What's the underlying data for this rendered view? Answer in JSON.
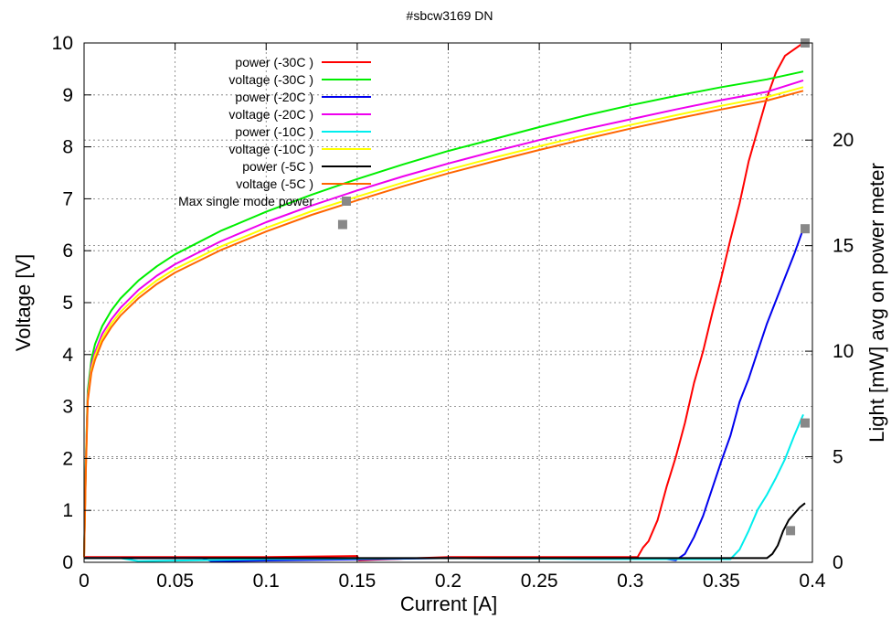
{
  "chart_data": {
    "type": "line",
    "title": "#sbcw3169 DN",
    "xlabel": "Current [A]",
    "ylabel": "Voltage [V]",
    "y2label": "Light [mW] avg on power meter",
    "xlim": [
      0,
      0.4
    ],
    "ylim": [
      0,
      10
    ],
    "y2lim": [
      0,
      24.6
    ],
    "x_ticks": [
      "0",
      "0.05",
      "0.1",
      "0.15",
      "0.2",
      "0.25",
      "0.3",
      "0.35",
      "0.4"
    ],
    "y_ticks": [
      "0",
      "1",
      "2",
      "3",
      "4",
      "5",
      "6",
      "7",
      "8",
      "9",
      "10"
    ],
    "y2_ticks": [
      "0",
      "5",
      "10",
      "15",
      "20"
    ],
    "grid": true,
    "legend_position": "top-left",
    "series": [
      {
        "name": "power (-30C )",
        "axis": "y2",
        "color": "#ff0000",
        "x": [
          0,
          0.1,
          0.15,
          0.151,
          0.2,
          0.304,
          0.307,
          0.31,
          0.315,
          0.32,
          0.325,
          0.33,
          0.335,
          0.34,
          0.345,
          0.35,
          0.355,
          0.36,
          0.365,
          0.37,
          0.375,
          0.38,
          0.385,
          0.39,
          0.395
        ],
        "y": [
          0.25,
          0.25,
          0.3,
          0.1,
          0.25,
          0.25,
          0.7,
          1.0,
          2.0,
          3.6,
          5.0,
          6.6,
          8.5,
          10.0,
          11.8,
          13.5,
          15.3,
          17.0,
          19.0,
          20.5,
          22.0,
          23.2,
          24.0,
          24.3,
          24.6
        ]
      },
      {
        "name": "voltage (-30C )",
        "axis": "y",
        "color": "#00ee00",
        "x": [
          0,
          0.001,
          0.002,
          0.004,
          0.006,
          0.01,
          0.015,
          0.02,
          0.03,
          0.04,
          0.05,
          0.075,
          0.1,
          0.125,
          0.15,
          0.175,
          0.2,
          0.225,
          0.25,
          0.275,
          0.3,
          0.325,
          0.35,
          0.375,
          0.395
        ],
        "y": [
          0.1,
          2.0,
          3.3,
          3.9,
          4.2,
          4.55,
          4.85,
          5.08,
          5.43,
          5.7,
          5.93,
          6.38,
          6.75,
          7.08,
          7.38,
          7.66,
          7.92,
          8.15,
          8.38,
          8.6,
          8.8,
          8.98,
          9.15,
          9.3,
          9.45
        ]
      },
      {
        "name": "power (-20C )",
        "axis": "y2",
        "color": "#0000ee",
        "x": [
          0,
          0.065,
          0.07,
          0.2,
          0.32,
          0.325,
          0.33,
          0.335,
          0.34,
          0.345,
          0.35,
          0.355,
          0.36,
          0.365,
          0.37,
          0.375,
          0.38,
          0.385,
          0.39,
          0.395
        ],
        "y": [
          0.2,
          0.2,
          0.05,
          0.2,
          0.15,
          0.1,
          0.4,
          1.2,
          2.2,
          3.5,
          4.8,
          6.0,
          7.6,
          8.7,
          10.0,
          11.3,
          12.4,
          13.5,
          14.6,
          15.8
        ]
      },
      {
        "name": "voltage (-20C )",
        "axis": "y",
        "color": "#ee00ee",
        "x": [
          0,
          0.001,
          0.002,
          0.004,
          0.006,
          0.01,
          0.015,
          0.02,
          0.03,
          0.04,
          0.05,
          0.075,
          0.1,
          0.125,
          0.15,
          0.175,
          0.2,
          0.225,
          0.25,
          0.275,
          0.3,
          0.325,
          0.35,
          0.375,
          0.395
        ],
        "y": [
          0.1,
          1.9,
          3.2,
          3.8,
          4.05,
          4.4,
          4.68,
          4.9,
          5.25,
          5.52,
          5.74,
          6.18,
          6.55,
          6.87,
          7.16,
          7.43,
          7.68,
          7.91,
          8.13,
          8.34,
          8.53,
          8.72,
          8.9,
          9.06,
          9.28
        ]
      },
      {
        "name": "power (-10C )",
        "axis": "y2",
        "color": "#00eeee",
        "x": [
          0,
          0.02,
          0.03,
          0.1,
          0.2,
          0.3,
          0.355,
          0.36,
          0.365,
          0.37,
          0.375,
          0.38,
          0.385,
          0.39,
          0.395
        ],
        "y": [
          0.2,
          0.2,
          0.05,
          0.15,
          0.2,
          0.15,
          0.15,
          0.6,
          1.5,
          2.5,
          3.2,
          4.0,
          4.9,
          6.0,
          7.0
        ]
      },
      {
        "name": "voltage (-10C )",
        "axis": "y",
        "color": "#ffff00",
        "x": [
          0,
          0.001,
          0.002,
          0.004,
          0.006,
          0.01,
          0.015,
          0.02,
          0.03,
          0.04,
          0.05,
          0.075,
          0.1,
          0.125,
          0.15,
          0.175,
          0.2,
          0.225,
          0.25,
          0.275,
          0.3,
          0.325,
          0.35,
          0.375,
          0.395
        ],
        "y": [
          0.1,
          1.85,
          3.15,
          3.72,
          3.98,
          4.32,
          4.6,
          4.82,
          5.16,
          5.43,
          5.65,
          6.08,
          6.44,
          6.76,
          7.04,
          7.31,
          7.56,
          7.79,
          8.01,
          8.22,
          8.42,
          8.61,
          8.79,
          8.96,
          9.15
        ]
      },
      {
        "name": "power (-5C )",
        "axis": "y2",
        "color": "#000000",
        "x": [
          0,
          0.1,
          0.2,
          0.3,
          0.375,
          0.378,
          0.381,
          0.384,
          0.387,
          0.39,
          0.393,
          0.396
        ],
        "y": [
          0.2,
          0.2,
          0.2,
          0.2,
          0.2,
          0.4,
          0.8,
          1.5,
          2.0,
          2.3,
          2.6,
          2.8
        ]
      },
      {
        "name": "voltage (-5C )",
        "axis": "y",
        "color": "#ff6600",
        "x": [
          0,
          0.001,
          0.002,
          0.004,
          0.006,
          0.01,
          0.015,
          0.02,
          0.03,
          0.04,
          0.05,
          0.075,
          0.1,
          0.125,
          0.15,
          0.175,
          0.2,
          0.225,
          0.25,
          0.275,
          0.3,
          0.325,
          0.35,
          0.375,
          0.395
        ],
        "y": [
          0.1,
          1.8,
          3.1,
          3.65,
          3.9,
          4.25,
          4.53,
          4.75,
          5.09,
          5.36,
          5.58,
          6.01,
          6.37,
          6.69,
          6.97,
          7.24,
          7.49,
          7.72,
          7.94,
          8.15,
          8.35,
          8.54,
          8.72,
          8.89,
          9.08
        ]
      },
      {
        "name": "Max single mode power",
        "axis": "y2",
        "color": "#888888",
        "marker": "square",
        "line": false,
        "x": [
          0.142,
          0.396,
          0.396,
          0.396,
          0.388
        ],
        "y": [
          16.0,
          24.6,
          15.8,
          6.6,
          1.5
        ]
      }
    ]
  }
}
